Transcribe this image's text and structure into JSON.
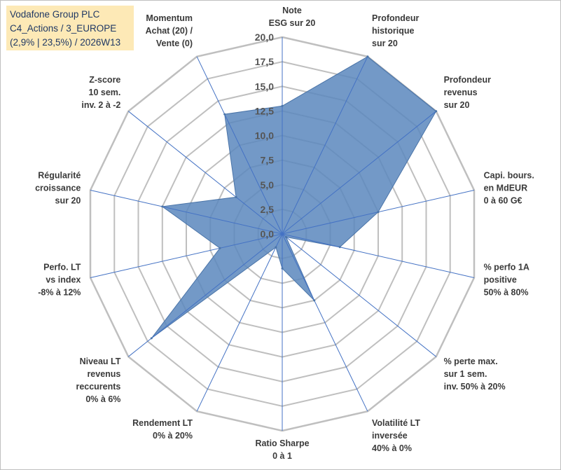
{
  "header": {
    "line1": "Vodafone Group PLC",
    "line2": "C4_Actions / 3_EUROPE",
    "line3": "(2,9% | 23,5%) / 2026W13"
  },
  "chart_data": {
    "type": "radar",
    "title": "Vodafone Group PLC",
    "rlim": [
      0,
      20
    ],
    "tick_step": 2.5,
    "tick_labels": [
      "0,0",
      "2,5",
      "5,0",
      "7,5",
      "10,0",
      "12,5",
      "15,0",
      "17,5",
      "20,0"
    ],
    "axes": [
      [
        "Note",
        "ESG sur 20"
      ],
      [
        "Profondeur",
        "historique",
        "sur 20"
      ],
      [
        "Profondeur",
        "revenus",
        "sur 20"
      ],
      [
        "Capi. bours.",
        "en MdEUR",
        "0 à 60 G€"
      ],
      [
        "% perfo 1A",
        "positive",
        "50% à 80%"
      ],
      [
        "% perte max.",
        "sur 1 sem.",
        "inv. 50% à 20%"
      ],
      [
        "Volatilité LT",
        "inversée",
        "40% à 0%"
      ],
      [
        "Ratio Sharpe",
        "0 à 1"
      ],
      [
        "Rendement LT",
        "0% à 20%"
      ],
      [
        "Niveau LT",
        "revenus",
        "reccurents",
        "0% à 6%"
      ],
      [
        "Perfo. LT",
        "vs index",
        "-8% à 12%"
      ],
      [
        "Régularité",
        "croissance",
        "sur 20"
      ],
      [
        "Z-score",
        "10 sem.",
        "inv. 2 à -2"
      ],
      [
        "Momentum",
        "Achat (20) /",
        "Vente (0)"
      ]
    ],
    "series": [
      {
        "name": "Vodafone Group PLC",
        "color": "#5b87bd",
        "values": [
          13.0,
          20.0,
          20.0,
          10.0,
          6.0,
          0.5,
          7.5,
          3.5,
          1.5,
          17.0,
          6.5,
          12.5,
          6.0,
          13.5
        ]
      }
    ],
    "colors": {
      "grid": "#bfbfbf",
      "axis": "#4472c4",
      "fill": "#5b87bd",
      "stroke": "#4a74a8"
    }
  }
}
